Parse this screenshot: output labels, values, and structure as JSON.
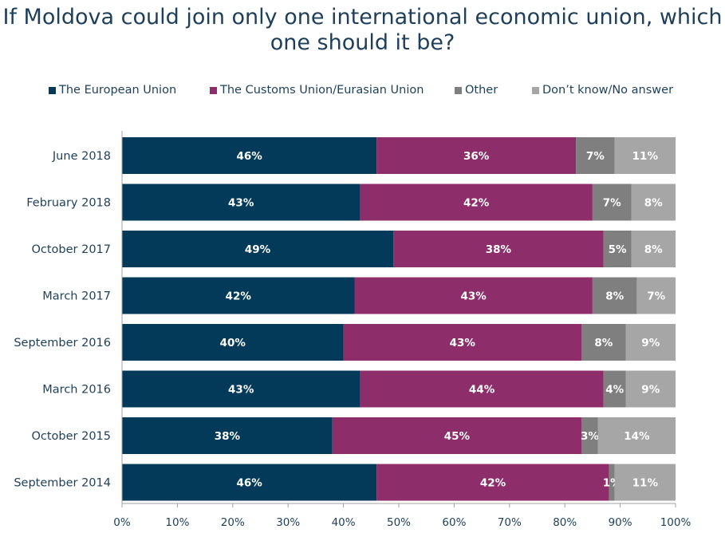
{
  "title": "If Moldova could join only one international economic union, which one should it be?",
  "colors": {
    "eu": "#033a5a",
    "customs": "#8d2e6a",
    "other": "#7f7f7f",
    "dk": "#a6a6a6",
    "text": "#1e3f5a",
    "axis": "#a0a0a0"
  },
  "chart_data": {
    "type": "bar",
    "orientation": "horizontal",
    "stacked": true,
    "stacking": "percent",
    "title": "If Moldova could join only one international economic union, which one should it be?",
    "legend_position": "top",
    "grid": false,
    "xlim": [
      0,
      100
    ],
    "x_ticks": [
      "0%",
      "10%",
      "20%",
      "30%",
      "40%",
      "50%",
      "60%",
      "70%",
      "80%",
      "90%",
      "100%"
    ],
    "categories": [
      "June 2018",
      "February 2018",
      "October 2017",
      "March 2017",
      "September 2016",
      "March 2016",
      "October 2015",
      "September 2014"
    ],
    "series": [
      {
        "name": "The European Union",
        "color": "#033a5a",
        "values": [
          46,
          43,
          49,
          42,
          40,
          43,
          38,
          46
        ]
      },
      {
        "name": "The Customs Union/Eurasian Union",
        "color": "#8d2e6a",
        "values": [
          36,
          42,
          38,
          43,
          43,
          44,
          45,
          42
        ]
      },
      {
        "name": "Other",
        "color": "#7f7f7f",
        "values": [
          7,
          7,
          5,
          8,
          8,
          4,
          3,
          1
        ]
      },
      {
        "name": "Don’t know/No answer",
        "color": "#a6a6a6",
        "values": [
          11,
          8,
          8,
          7,
          9,
          9,
          14,
          11
        ]
      }
    ]
  }
}
